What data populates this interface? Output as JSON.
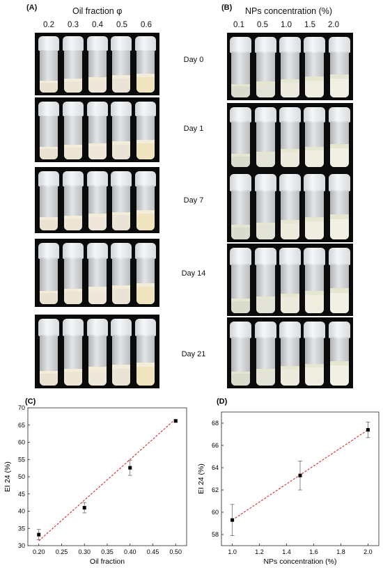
{
  "panelA": {
    "label": "(A)",
    "title": "Oil fraction φ",
    "columns": [
      "0.2",
      "0.3",
      "0.4",
      "0.5",
      "0.6"
    ]
  },
  "panelB": {
    "label": "(B)",
    "title": "NPs concentration (%)",
    "columns": [
      "0.1",
      "0.5",
      "1.0",
      "1.5",
      "2.0"
    ]
  },
  "days": [
    "Day 0",
    "Day 1",
    "Day 7",
    "Day 14",
    "Day 21"
  ],
  "panelC": {
    "label": "(C)"
  },
  "panelD": {
    "label": "(D)"
  },
  "chart_data": [
    {
      "type": "scatter",
      "xlabel": "Oil fraction",
      "ylabel": "EI 24 (%)",
      "xlim": [
        0.2,
        0.5
      ],
      "ylim": [
        30,
        70
      ],
      "xticks": [
        "0.20",
        "0.25",
        "0.30",
        "0.35",
        "0.40",
        "0.45",
        "0.50"
      ],
      "yticks": [
        "30",
        "35",
        "40",
        "45",
        "50",
        "55",
        "60",
        "65",
        "70"
      ],
      "points": [
        {
          "x": 0.2,
          "y": 33.2,
          "err": 1.5
        },
        {
          "x": 0.3,
          "y": 41.0,
          "err": 1.5
        },
        {
          "x": 0.4,
          "y": 52.6,
          "err": 2.2
        },
        {
          "x": 0.5,
          "y": 66.2,
          "err": 0.4
        }
      ],
      "fit": {
        "x": [
          0.2,
          0.5
        ],
        "y": [
          31.4,
          66.8
        ],
        "color": "#d62728"
      }
    },
    {
      "type": "scatter",
      "xlabel": "NPs concentration (%)",
      "ylabel": "EI 24 (%)",
      "xlim": [
        1.0,
        2.0
      ],
      "ylim": [
        57,
        69
      ],
      "xticks": [
        "1.0",
        "1.2",
        "1.4",
        "1.6",
        "1.8",
        "2.0"
      ],
      "yticks": [
        "58",
        "60",
        "62",
        "64",
        "66",
        "68"
      ],
      "points": [
        {
          "x": 1.0,
          "y": 59.3,
          "err": 1.4
        },
        {
          "x": 1.5,
          "y": 63.3,
          "err": 1.3
        },
        {
          "x": 2.0,
          "y": 67.4,
          "err": 0.7
        }
      ],
      "fit": {
        "x": [
          1.0,
          2.0
        ],
        "y": [
          59.3,
          67.4
        ],
        "color": "#d62728"
      }
    }
  ]
}
